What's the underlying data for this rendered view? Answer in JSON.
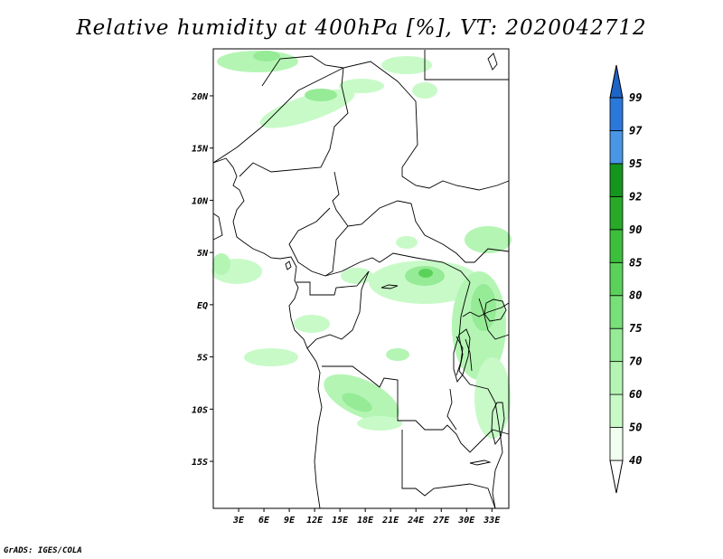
{
  "title": "Relative humidity at 400hPa [%], VT: 2020042712",
  "credit": "GrADS: IGES/COLA",
  "map": {
    "lon_range": [
      0,
      35
    ],
    "lat_range": [
      -19.5,
      24.5
    ],
    "lat_ticks": [
      {
        "value": 20,
        "label": "20N"
      },
      {
        "value": 15,
        "label": "15N"
      },
      {
        "value": 10,
        "label": "10N"
      },
      {
        "value": 5,
        "label": "5N"
      },
      {
        "value": 0,
        "label": "EQ"
      },
      {
        "value": -5,
        "label": "5S"
      },
      {
        "value": -10,
        "label": "10S"
      },
      {
        "value": -15,
        "label": "15S"
      }
    ],
    "lon_ticks": [
      {
        "value": 3,
        "label": "3E"
      },
      {
        "value": 6,
        "label": "6E"
      },
      {
        "value": 9,
        "label": "9E"
      },
      {
        "value": 12,
        "label": "12E"
      },
      {
        "value": 15,
        "label": "15E"
      },
      {
        "value": 18,
        "label": "18E"
      },
      {
        "value": 21,
        "label": "21E"
      },
      {
        "value": 24,
        "label": "24E"
      },
      {
        "value": 27,
        "label": "27E"
      },
      {
        "value": 30,
        "label": "30E"
      },
      {
        "value": 33,
        "label": "33E"
      }
    ]
  },
  "colorbar": {
    "levels": [
      {
        "label": "40",
        "color": "#f0fff0"
      },
      {
        "label": "50",
        "color": "#c8fac8"
      },
      {
        "label": "60",
        "color": "#b4f5b4"
      },
      {
        "label": "70",
        "color": "#96eb96"
      },
      {
        "label": "75",
        "color": "#78e078"
      },
      {
        "label": "80",
        "color": "#5ad25a"
      },
      {
        "label": "85",
        "color": "#3cc03c"
      },
      {
        "label": "90",
        "color": "#28aa28"
      },
      {
        "label": "92",
        "color": "#14961e"
      },
      {
        "label": "95",
        "color": "#4a96e6"
      },
      {
        "label": "97",
        "color": "#2a78dc"
      },
      {
        "label": "99",
        "color": "#1a5cc8"
      }
    ],
    "top_arrow_color": "#1e64c8"
  }
}
